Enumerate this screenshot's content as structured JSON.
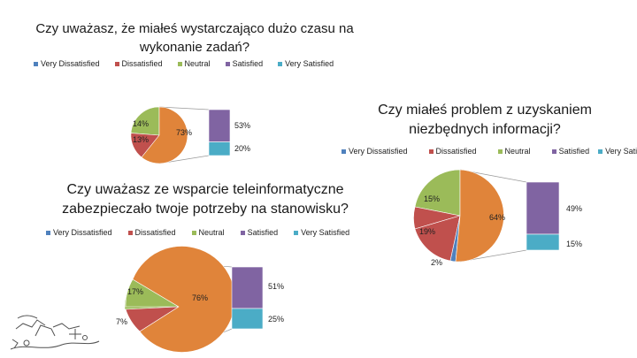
{
  "legend_labels": [
    "Very Dissatisfied",
    "Dissatisfied",
    "Neutral",
    "Satisfied",
    "Very Satisfied"
  ],
  "colors": {
    "very_dissatisfied": "#4f81bd",
    "dissatisfied": "#c0504d",
    "neutral": "#9bbb59",
    "satisfied": "#8064a2",
    "very_satisfied": "#4bacc6",
    "orange": "#e0843a"
  },
  "chart_data": [
    {
      "type": "pie",
      "title": "Czy uważasz, że miałeś wystarczająco dużo czasu na wykonanie zadań?",
      "pie": [
        {
          "label": "Neutral",
          "value": 14,
          "text": "14%"
        },
        {
          "label": "Dissatisfied",
          "value": 13,
          "text": "13%"
        },
        {
          "label": "Satisfied+Very Satisfied",
          "value": 73,
          "text": "73%"
        }
      ],
      "bar": [
        {
          "label": "Satisfied",
          "value": 53,
          "text": "53%"
        },
        {
          "label": "Very Satisfied",
          "value": 20,
          "text": "20%"
        }
      ]
    },
    {
      "type": "pie",
      "title": "Czy miałeś problem z uzyskaniem niezbędnych informacji?",
      "pie": [
        {
          "label": "Neutral",
          "value": 15,
          "text": "15%"
        },
        {
          "label": "Satisfied+Very Satisfied",
          "value": 64,
          "text": "64%"
        },
        {
          "label": "Very Dissatisfied",
          "value": 2,
          "text": "2%"
        },
        {
          "label": "Dissatisfied",
          "value": 19,
          "text": "19%"
        }
      ],
      "bar": [
        {
          "label": "Satisfied",
          "value": 49,
          "text": "49%"
        },
        {
          "label": "Very Satisfied",
          "value": 15,
          "text": "15%"
        }
      ]
    },
    {
      "type": "pie",
      "title": "Czy uważasz ze wsparcie teleinformatyczne zabezpieczało twoje potrzeby na stanowisku?",
      "pie": [
        {
          "label": "Neutral",
          "value": 17,
          "text": "17%"
        },
        {
          "label": "Dissatisfied",
          "value": 7,
          "text": "7%"
        },
        {
          "label": "Satisfied+Very Satisfied",
          "value": 76,
          "text": "76%"
        }
      ],
      "bar": [
        {
          "label": "Satisfied",
          "value": 51,
          "text": "51%"
        },
        {
          "label": "Very Satisfied",
          "value": 25,
          "text": "25%"
        }
      ]
    }
  ]
}
